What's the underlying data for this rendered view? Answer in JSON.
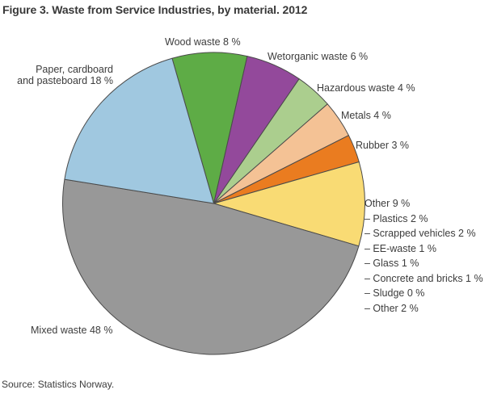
{
  "header": {
    "title": "Figure 3. Waste from Service Industries, by material. 2012"
  },
  "footer": {
    "source": "Source: Statistics Norway."
  },
  "chart_data": {
    "type": "pie",
    "title": "Figure 3. Waste from Service Industries, by material. 2012",
    "unit": "%",
    "start_angle_deg": -16,
    "direction": "clockwise",
    "legend_position": "around-slices",
    "stroke_color": "#4a4a4a",
    "slices": [
      {
        "label": "Wood waste",
        "value": 8,
        "color": "#5EAC46"
      },
      {
        "label": "Wetorganic waste",
        "value": 6,
        "color": "#93499B"
      },
      {
        "label": "Hazardous waste",
        "value": 4,
        "color": "#ABCE8E"
      },
      {
        "label": "Metals",
        "value": 4,
        "color": "#F4C295"
      },
      {
        "label": "Rubber",
        "value": 3,
        "color": "#EA7C20"
      },
      {
        "label": "Other",
        "value": 9,
        "color": "#F9DB74",
        "breakdown": [
          {
            "label": "Plastics",
            "value": 2
          },
          {
            "label": "Scrapped vehicles",
            "value": 2
          },
          {
            "label": "EE-waste",
            "value": 1
          },
          {
            "label": "Glass",
            "value": 1
          },
          {
            "label": "Concrete and bricks",
            "value": 1
          },
          {
            "label": "Sludge",
            "value": 0
          },
          {
            "label": "Other",
            "value": 2
          }
        ]
      },
      {
        "label": "Mixed waste",
        "value": 48,
        "color": "#989898"
      },
      {
        "label": "Paper, cardboard and pasteboard",
        "value": 18,
        "color": "#A0C8E0"
      }
    ]
  },
  "labels": {
    "wood": "Wood waste 8 %",
    "wetorganic": "Wetorganic waste 6 %",
    "hazardous": "Hazardous waste 4 %",
    "metals": "Metals 4 %",
    "rubber": "Rubber 3 %",
    "other_title": "Other 9 %",
    "other_items": [
      "– Plastics 2 %",
      "– Scrapped vehicles 2 %",
      "– EE-waste 1 %",
      "– Glass 1 %",
      "– Concrete and bricks 1 %",
      "– Sludge 0 %",
      "– Other 2 %"
    ],
    "mixed": "Mixed waste 48 %",
    "paper_line1": "Paper, cardboard",
    "paper_line2": "and pasteboard 18 %"
  }
}
